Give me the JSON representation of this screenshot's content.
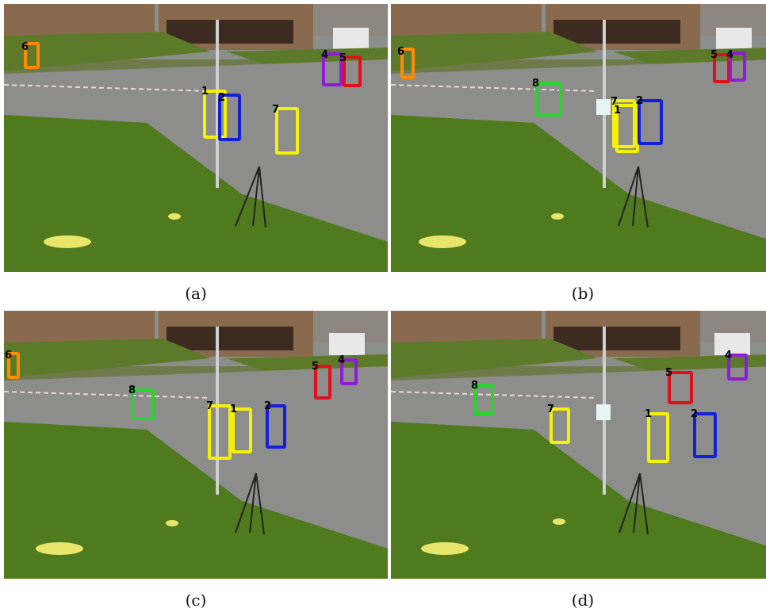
{
  "figure": {
    "panels": [
      {
        "caption": "(a)",
        "tracks": [
          {
            "id": "6",
            "color": "#ff8c00"
          },
          {
            "id": "4",
            "color": "#8e1bd6"
          },
          {
            "id": "5",
            "color": "#e0101a"
          },
          {
            "id": "1",
            "color": "#f5f20a"
          },
          {
            "id": "2",
            "color": "#1420d8"
          },
          {
            "id": "7",
            "color": "#f5f20a"
          }
        ]
      },
      {
        "caption": "(b)",
        "tracks": [
          {
            "id": "6",
            "color": "#ff8c00"
          },
          {
            "id": "5",
            "color": "#e0101a"
          },
          {
            "id": "4",
            "color": "#8e1bd6"
          },
          {
            "id": "8",
            "color": "#22d62a"
          },
          {
            "id": "7",
            "color": "#f5f20a"
          },
          {
            "id": "1",
            "color": "#f5f20a"
          },
          {
            "id": "2",
            "color": "#1420d8"
          }
        ]
      },
      {
        "caption": "(c)",
        "tracks": [
          {
            "id": "6",
            "color": "#ff8c00"
          },
          {
            "id": "5",
            "color": "#e0101a"
          },
          {
            "id": "4",
            "color": "#8e1bd6"
          },
          {
            "id": "8",
            "color": "#22d62a"
          },
          {
            "id": "7",
            "color": "#f5f20a"
          },
          {
            "id": "1",
            "color": "#f5f20a"
          },
          {
            "id": "2",
            "color": "#1420d8"
          }
        ]
      },
      {
        "caption": "(d)",
        "tracks": [
          {
            "id": "4",
            "color": "#8e1bd6"
          },
          {
            "id": "5",
            "color": "#e0101a"
          },
          {
            "id": "8",
            "color": "#22d62a"
          },
          {
            "id": "7",
            "color": "#f5f20a"
          },
          {
            "id": "1",
            "color": "#f5f20a"
          },
          {
            "id": "2",
            "color": "#1420d8"
          }
        ]
      }
    ]
  }
}
